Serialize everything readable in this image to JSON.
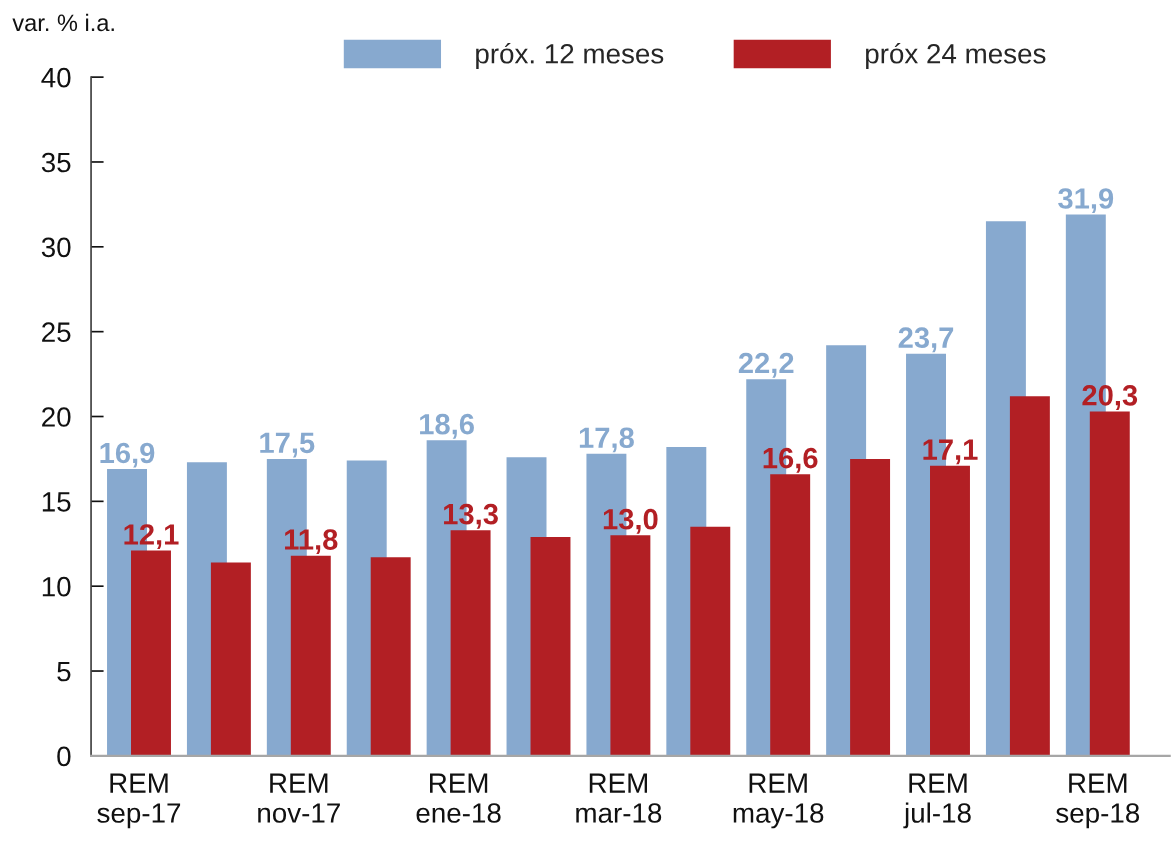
{
  "chart_data": {
    "type": "bar",
    "ylabel": "var. % i.a.",
    "categories": [
      "REM\nsep-17",
      null,
      "REM\nnov-17",
      null,
      "REM\nene-18",
      null,
      "REM\nmar-18",
      null,
      "REM\nmay-18",
      null,
      "REM\njul-18",
      null,
      "REM\nsep-18"
    ],
    "series": [
      {
        "name": "próx. 12 meses",
        "color": "#87a9cf",
        "values": [
          16.9,
          17.3,
          17.5,
          17.4,
          18.6,
          17.6,
          17.8,
          18.2,
          22.2,
          24.2,
          23.7,
          31.5,
          31.9
        ],
        "value_labels": [
          "16,9",
          null,
          "17,5",
          null,
          "18,6",
          null,
          "17,8",
          null,
          "22,2",
          null,
          "23,7",
          null,
          "31,9"
        ]
      },
      {
        "name": "próx 24 meses",
        "color": "#b21f24",
        "values": [
          12.1,
          11.4,
          11.8,
          11.7,
          13.3,
          12.9,
          13.0,
          13.5,
          16.6,
          17.5,
          17.1,
          21.2,
          20.3
        ],
        "value_labels": [
          "12,1",
          null,
          "11,8",
          null,
          "13,3",
          null,
          "13,0",
          null,
          "16,6",
          null,
          "17,1",
          null,
          "20,3"
        ]
      }
    ],
    "ylim": [
      0,
      40
    ],
    "yticks": [
      0,
      5,
      10,
      15,
      20,
      25,
      30,
      35,
      40
    ],
    "legend": "top"
  }
}
